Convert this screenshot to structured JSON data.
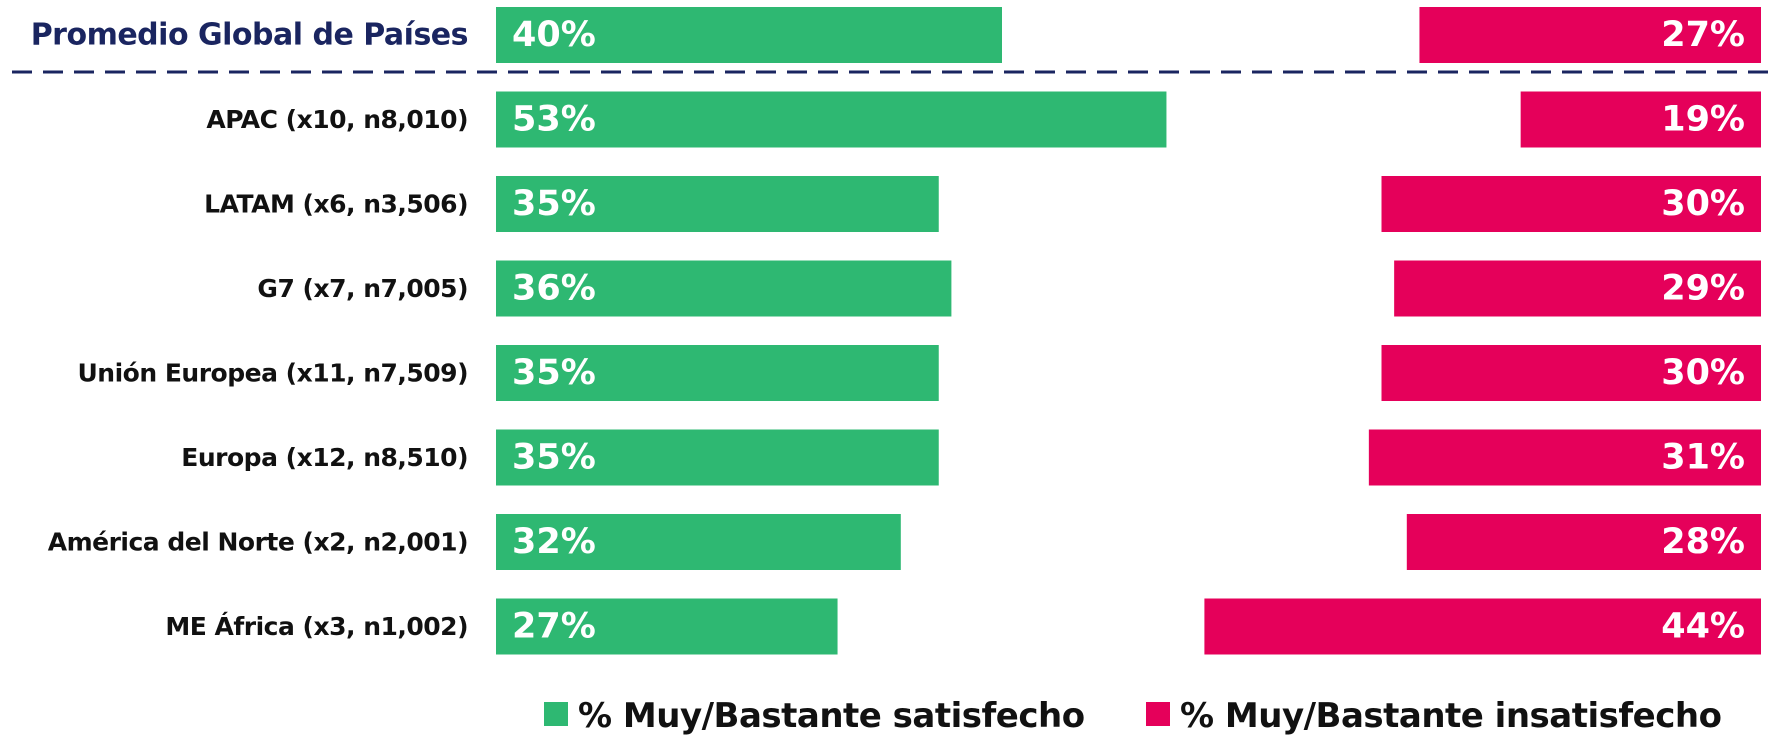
{
  "chart_data": {
    "type": "bar",
    "categories": [
      "Promedio Global de Países",
      "APAC (x10, n8,010)",
      "LATAM (x6, n3,506)",
      "G7 (x7, n7,005)",
      "Unión Europea (x11, n7,509)",
      "Europa (x12, n8,510)",
      "América del Norte (x2, n2,001)",
      "ME África (x3, n1,002)"
    ],
    "series": [
      {
        "name": "% Muy/Bastante satisfecho",
        "color": "#2eb872",
        "values": [
          40,
          53,
          35,
          36,
          35,
          35,
          32,
          27
        ],
        "value_labels": [
          "40%",
          "53%",
          "35%",
          "36%",
          "35%",
          "35%",
          "32%",
          "27%"
        ]
      },
      {
        "name": "% Muy/Bastante insatisfecho",
        "color": "#e5005a",
        "values": [
          27,
          19,
          30,
          29,
          30,
          31,
          28,
          44
        ],
        "value_labels": [
          "27%",
          "19%",
          "30%",
          "29%",
          "30%",
          "31%",
          "28%",
          "44%"
        ]
      }
    ]
  }
}
